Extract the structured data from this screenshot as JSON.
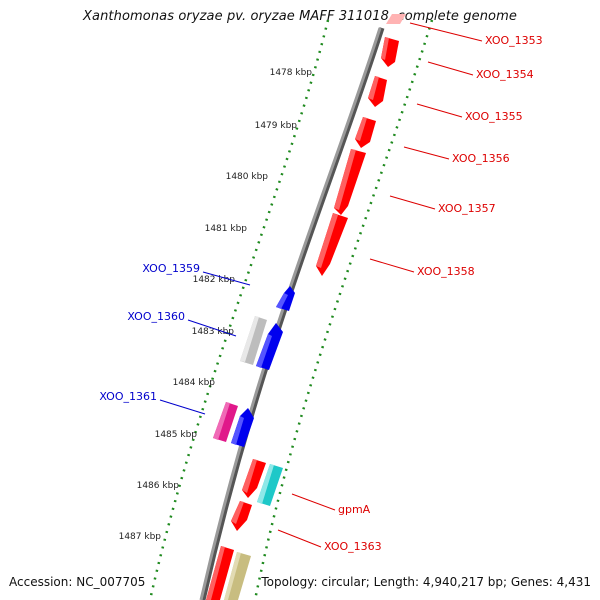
{
  "title": "Xanthomonas oryzae pv. oryzae MAFF 311018, complete genome",
  "footer": {
    "accession": "Accession: NC_007705",
    "summary": "Topology: circular; Length: 4,940,217 bp; Genes: 4,431"
  },
  "colors": {
    "backbone": "#8c8c8c",
    "tick_dots": "#1f8a1f",
    "red_gene": "#ff0000",
    "blue_gene": "#0000ee",
    "gray_gene": "#bdbdbd",
    "magenta_gene": "#e0188a",
    "cyan_gene": "#1ec8c8",
    "olive_gene": "#c8bd80",
    "pink_gene": "#ffb3b3",
    "red_label": "#dd0000",
    "blue_label": "#0000cc"
  },
  "kbp_labels": [
    "1478 kbp",
    "1479 kbp",
    "1480 kbp",
    "1481 kbp",
    "1482 kbp",
    "1483 kbp",
    "1484 kbp",
    "1485 kbp",
    "1486 kbp",
    "1487 kbp"
  ],
  "genes": [
    {
      "name": "XOO_1353",
      "strand": "+",
      "color": "pink"
    },
    {
      "name": "XOO_1354",
      "strand": "+",
      "color": "red"
    },
    {
      "name": "XOO_1355",
      "strand": "+",
      "color": "red"
    },
    {
      "name": "XOO_1356",
      "strand": "+",
      "color": "red"
    },
    {
      "name": "XOO_1357",
      "strand": "+",
      "color": "red"
    },
    {
      "name": "XOO_1358",
      "strand": "+",
      "color": "red"
    },
    {
      "name": "XOO_1359",
      "strand": "-",
      "color": "blue"
    },
    {
      "name": "XOO_1360",
      "strand": "-",
      "color": "blue"
    },
    {
      "name": "XOO_1361",
      "strand": "-",
      "color": "magenta"
    },
    {
      "name": "gpmA",
      "strand": "+",
      "color": "cyan"
    },
    {
      "name": "XOO_1363",
      "strand": "+",
      "color": "red"
    }
  ]
}
